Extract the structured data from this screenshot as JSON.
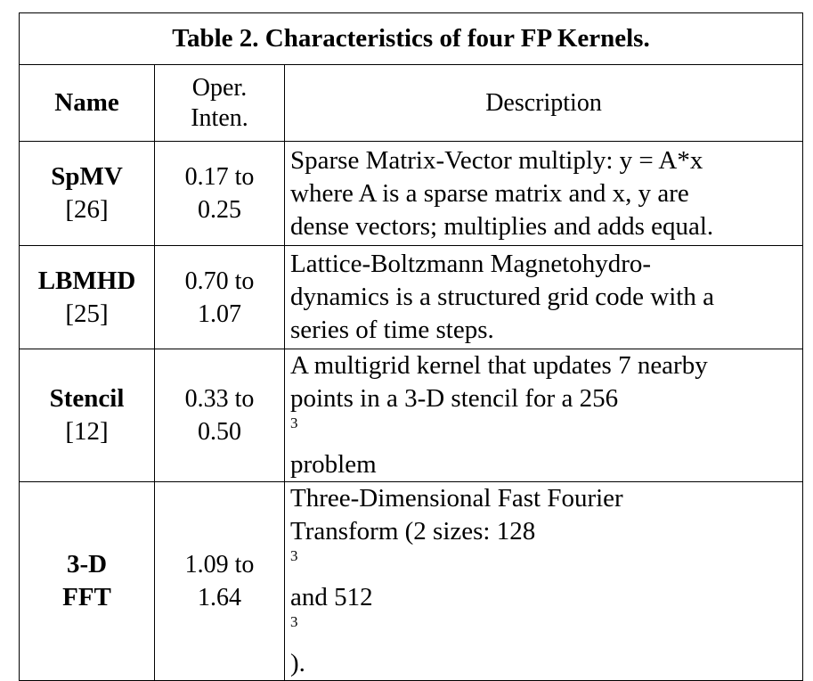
{
  "table": {
    "caption": "Table 2. Characteristics of four FP Kernels.",
    "headers": {
      "name": "Name",
      "oper_line1": "Oper.",
      "oper_line2": "Inten.",
      "description": "Description"
    },
    "rows": [
      {
        "name": "SpMV",
        "ref": "[26]",
        "oper_line1": "0.17 to",
        "oper_line2": "0.25",
        "desc_line1": "Sparse Matrix-Vector multiply: y = A*x",
        "desc_line2": "where A is a sparse matrix and x, y are",
        "desc_line3": "dense vectors; multiplies and adds equal."
      },
      {
        "name": "LBMHD",
        "ref": "[25]",
        "oper_line1": "0.70 to",
        "oper_line2": "1.07",
        "desc_line1": "Lattice-Boltzmann Magnetohydro-",
        "desc_line2": "dynamics is a structured grid code with a",
        "desc_line3": "series of time steps."
      },
      {
        "name": "Stencil",
        "ref": "[12]",
        "oper_line1": "0.33 to",
        "oper_line2": "0.50",
        "desc_line1": "A multigrid kernel that updates 7 nearby",
        "desc_line2_pre": "points in a 3-D stencil for a 256",
        "desc_line2_sup": "3",
        "desc_line2_post": " problem"
      },
      {
        "name_line1": "3-D",
        "name_line2": "FFT",
        "oper_line1": "1.09 to",
        "oper_line2": "1.64",
        "desc_line1": "Three-Dimensional Fast Fourier",
        "desc_line2_a": "Transform (2 sizes: 128",
        "desc_line2_sup1": "3",
        "desc_line2_b": " and 512",
        "desc_line2_sup2": "3",
        "desc_line2_c": ")."
      }
    ]
  }
}
